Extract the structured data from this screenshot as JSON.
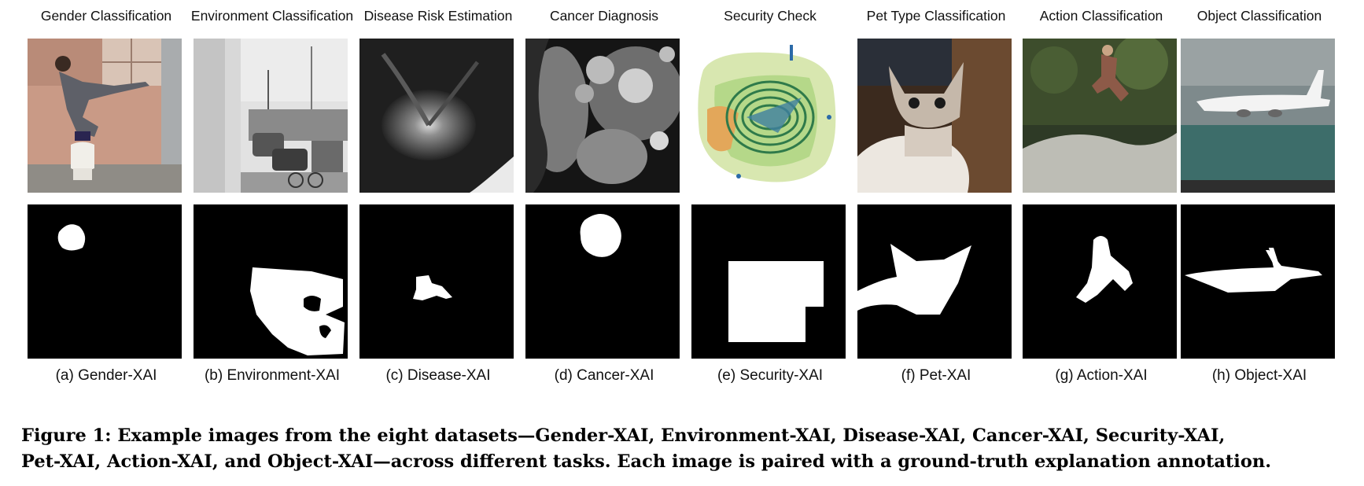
{
  "panels": [
    {
      "title": "Gender Classification",
      "label": "(a) Gender-XAI"
    },
    {
      "title": "Environment Classification",
      "label": "(b) Environment-XAI"
    },
    {
      "title": "Disease Risk Estimation",
      "label": "(c) Disease-XAI"
    },
    {
      "title": "Cancer Diagnosis",
      "label": "(d) Cancer-XAI"
    },
    {
      "title": "Security Check",
      "label": "(e) Security-XAI"
    },
    {
      "title": "Pet Type Classification",
      "label": "(f) Pet-XAI"
    },
    {
      "title": "Action Classification",
      "label": "(g) Action-XAI"
    },
    {
      "title": "Object Classification",
      "label": "(h) Object-XAI"
    }
  ],
  "caption": {
    "line1": "Figure 1: Example images from the eight datasets—Gender-XAI, Environment-XAI, Disease-XAI, Cancer-XAI, Security-XAI,",
    "line2": "Pet-XAI, Action-XAI, and Object-XAI—across different tasks. Each image is paired with a ground-truth explanation annotation."
  }
}
